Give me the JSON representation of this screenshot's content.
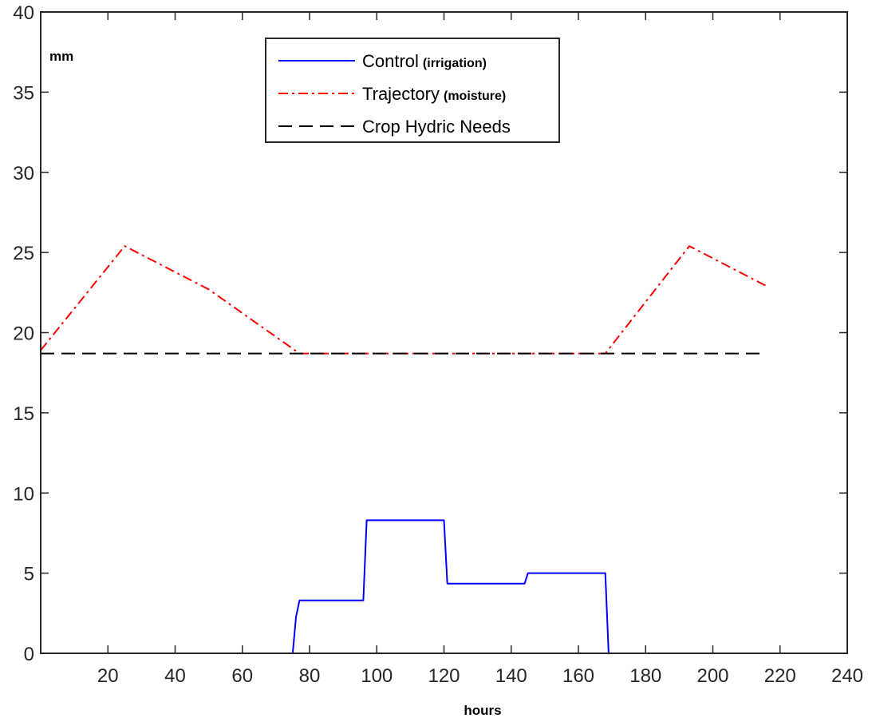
{
  "chart_data": {
    "type": "line",
    "title": "",
    "xlabel": "hours",
    "ylabel": "mm",
    "xlim": [
      0,
      240
    ],
    "ylim": [
      0,
      40
    ],
    "xticks": [
      20,
      40,
      60,
      80,
      100,
      120,
      140,
      160,
      180,
      200,
      220,
      240
    ],
    "yticks": [
      0,
      5,
      10,
      15,
      20,
      25,
      30,
      35,
      40
    ],
    "grid": false,
    "legend_position": "top-center",
    "series": [
      {
        "name": "Control",
        "name_suffix": "(irrigation)",
        "color": "#0000ff",
        "style": "solid",
        "x": [
          0,
          75,
          76,
          77,
          96,
          97,
          120,
          121,
          144,
          145,
          168,
          169,
          216
        ],
        "y": [
          0,
          0,
          2.3,
          3.3,
          3.3,
          8.3,
          8.3,
          4.35,
          4.35,
          5.0,
          5.0,
          0,
          0
        ]
      },
      {
        "name": "Trajectory",
        "name_suffix": "(moisture)",
        "color": "#ff0000",
        "style": "dashdot",
        "x": [
          0,
          25,
          50,
          77,
          168,
          193,
          216
        ],
        "y": [
          18.9,
          25.4,
          22.7,
          18.7,
          18.7,
          25.4,
          22.9
        ]
      },
      {
        "name": "Crop Hydric Needs",
        "name_suffix": "",
        "color": "#000000",
        "style": "dashed",
        "x": [
          0,
          216
        ],
        "y": [
          18.7,
          18.7
        ]
      }
    ]
  }
}
